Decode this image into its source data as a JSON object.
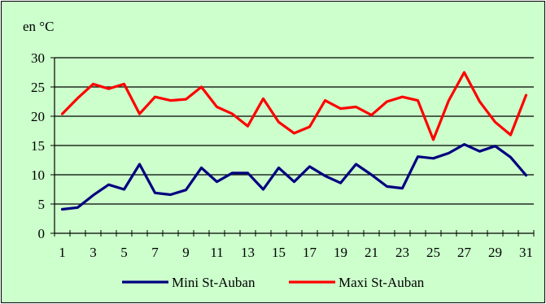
{
  "chart_data": {
    "type": "line",
    "ylabel": "en °C",
    "ylim": [
      0,
      30
    ],
    "yticks": [
      0,
      5,
      10,
      15,
      20,
      25,
      30
    ],
    "x": [
      1,
      2,
      3,
      4,
      5,
      6,
      7,
      8,
      9,
      10,
      11,
      12,
      13,
      14,
      15,
      16,
      17,
      18,
      19,
      20,
      21,
      22,
      23,
      24,
      25,
      26,
      27,
      28,
      29,
      30,
      31
    ],
    "xtick_labels": [
      "1",
      "3",
      "5",
      "7",
      "9",
      "11",
      "13",
      "15",
      "17",
      "19",
      "21",
      "23",
      "25",
      "27",
      "29",
      "31"
    ],
    "grid": "horizontal",
    "legend": "bottom",
    "series": [
      {
        "name": "Mini St-Auban",
        "color": "#000080",
        "values": [
          4.1,
          4.4,
          6.5,
          8.3,
          7.5,
          11.8,
          6.9,
          6.6,
          7.4,
          11.2,
          8.8,
          10.3,
          10.3,
          7.5,
          11.2,
          8.8,
          11.4,
          9.8,
          8.6,
          11.8,
          10.0,
          8.0,
          7.7,
          13.1,
          12.8,
          13.7,
          15.2,
          14.0,
          14.9,
          13.0,
          9.9
        ]
      },
      {
        "name": "Maxi St-Auban",
        "color": "#ff0000",
        "values": [
          20.4,
          23.1,
          25.5,
          24.7,
          25.5,
          20.4,
          23.3,
          22.7,
          22.9,
          25.0,
          21.6,
          20.4,
          18.3,
          23.0,
          19.0,
          17.1,
          18.2,
          22.7,
          21.3,
          21.6,
          20.2,
          22.5,
          23.3,
          22.7,
          16.0,
          22.7,
          27.5,
          22.5,
          19.0,
          16.8,
          23.6
        ]
      }
    ]
  }
}
